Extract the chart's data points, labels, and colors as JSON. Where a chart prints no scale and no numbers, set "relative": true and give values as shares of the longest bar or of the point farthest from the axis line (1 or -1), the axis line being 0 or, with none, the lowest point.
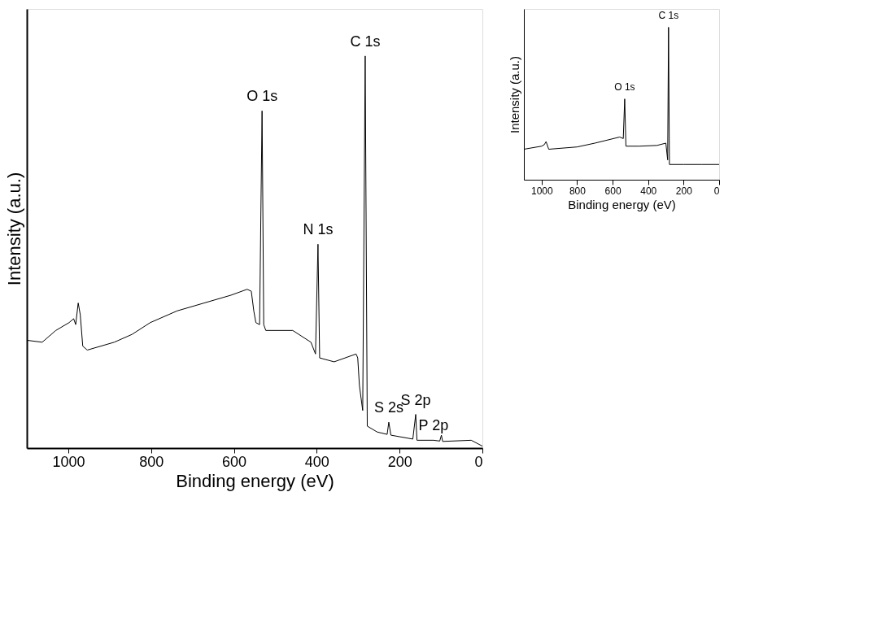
{
  "chart_data": [
    {
      "type": "line",
      "relative": true,
      "xlabel": "Binding energy (eV)",
      "ylabel": "Intensity (a.u.)",
      "xlim": [
        1100,
        0
      ],
      "xticks": [
        1000,
        800,
        600,
        400,
        200,
        0
      ],
      "color": "#000000",
      "x": [
        1100,
        1063,
        1030,
        998,
        987,
        982,
        976,
        971,
        965,
        954,
        889,
        846,
        802,
        737,
        672,
        607,
        568,
        558,
        552,
        547,
        538,
        532,
        528,
        523,
        458,
        414,
        403,
        397,
        393,
        358,
        305,
        301,
        297,
        289,
        283,
        278,
        254,
        230,
        226,
        221,
        168,
        161,
        158,
        118,
        103,
        99,
        96,
        27,
        0
      ],
      "values": [
        0.275,
        0.27,
        0.3,
        0.32,
        0.33,
        0.315,
        0.37,
        0.34,
        0.26,
        0.25,
        0.27,
        0.29,
        0.32,
        0.35,
        0.37,
        0.39,
        0.405,
        0.4,
        0.35,
        0.32,
        0.315,
        0.86,
        0.315,
        0.3,
        0.3,
        0.27,
        0.24,
        0.52,
        0.23,
        0.22,
        0.24,
        0.23,
        0.16,
        0.096,
        1.0,
        0.056,
        0.041,
        0.035,
        0.066,
        0.033,
        0.023,
        0.086,
        0.02,
        0.02,
        0.018,
        0.033,
        0.017,
        0.02,
        0.005
      ],
      "annotations": [
        {
          "text": "O 1s",
          "x": 532,
          "y": 0.86
        },
        {
          "text": "N 1s",
          "x": 397,
          "y": 0.52
        },
        {
          "text": "C 1s",
          "x": 283,
          "y": 1.0
        },
        {
          "text": "S 2s",
          "x": 226,
          "y": 0.066
        },
        {
          "text": "S 2p",
          "x": 161,
          "y": 0.086
        },
        {
          "text": "P 2p",
          "x": 118,
          "y": 0.02
        }
      ]
    },
    {
      "type": "line",
      "relative": true,
      "xlabel": "Binding energy (eV)",
      "ylabel": "Intensity (a.u.)",
      "xlim": [
        1100,
        0
      ],
      "xticks": [
        1000,
        800,
        600,
        400,
        200,
        0
      ],
      "color": "#000000",
      "x": [
        1100,
        1000,
        985,
        975,
        960,
        800,
        700,
        560,
        540,
        532,
        525,
        450,
        350,
        300,
        290,
        285,
        280,
        200,
        100,
        0
      ],
      "values": [
        0.2,
        0.22,
        0.23,
        0.25,
        0.2,
        0.215,
        0.24,
        0.28,
        0.27,
        0.53,
        0.22,
        0.22,
        0.225,
        0.24,
        0.13,
        1.0,
        0.1,
        0.1,
        0.1,
        0.1
      ],
      "annotations": [
        {
          "text": "O 1s",
          "x": 532,
          "y": 0.53
        },
        {
          "text": "C 1s",
          "x": 285,
          "y": 1.0
        }
      ]
    }
  ]
}
